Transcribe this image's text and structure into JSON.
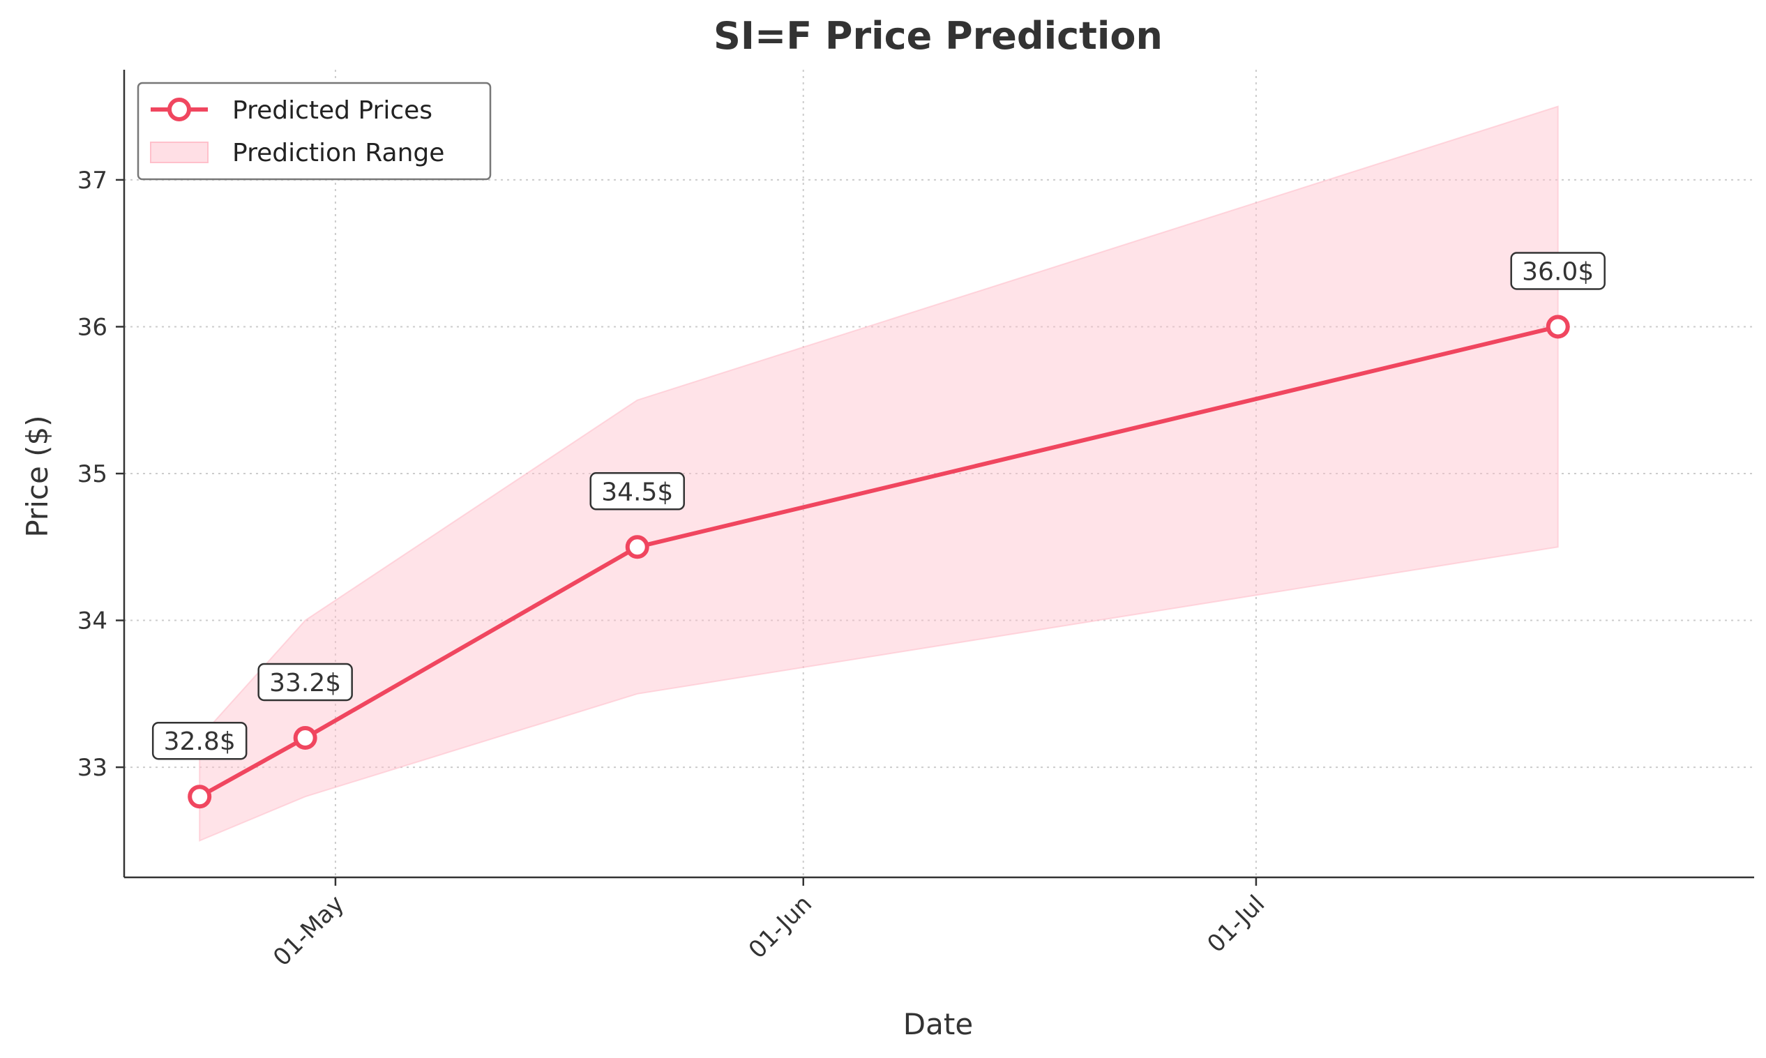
{
  "chart_data": {
    "type": "line",
    "title": "SI=F Price Prediction",
    "xlabel": "Date",
    "ylabel": "Price ($)",
    "x_ticks": [
      "01-May",
      "01-Jun",
      "01-Jul"
    ],
    "y_ticks": [
      33,
      34,
      35,
      36,
      37
    ],
    "ylim": [
      32.25,
      37.75
    ],
    "xlim": [
      "2025-04-17",
      "2025-08-03"
    ],
    "grid": true,
    "legend_position": "top-left",
    "series": [
      {
        "name": "Predicted Prices",
        "kind": "line",
        "color": "#f0465f",
        "x": [
          "2025-04-22",
          "2025-04-29",
          "2025-05-21",
          "2025-07-21"
        ],
        "values": [
          32.8,
          33.2,
          34.5,
          36.0
        ],
        "labels": [
          "32.8$",
          "33.2$",
          "34.5$",
          "36.0$"
        ]
      },
      {
        "name": "Prediction Range",
        "kind": "band",
        "color": "#ffc0cb",
        "x": [
          "2025-04-22",
          "2025-04-29",
          "2025-05-21",
          "2025-07-21"
        ],
        "lower": [
          32.5,
          32.8,
          33.5,
          34.5
        ],
        "upper": [
          33.2,
          34.0,
          35.5,
          37.5
        ]
      }
    ]
  }
}
